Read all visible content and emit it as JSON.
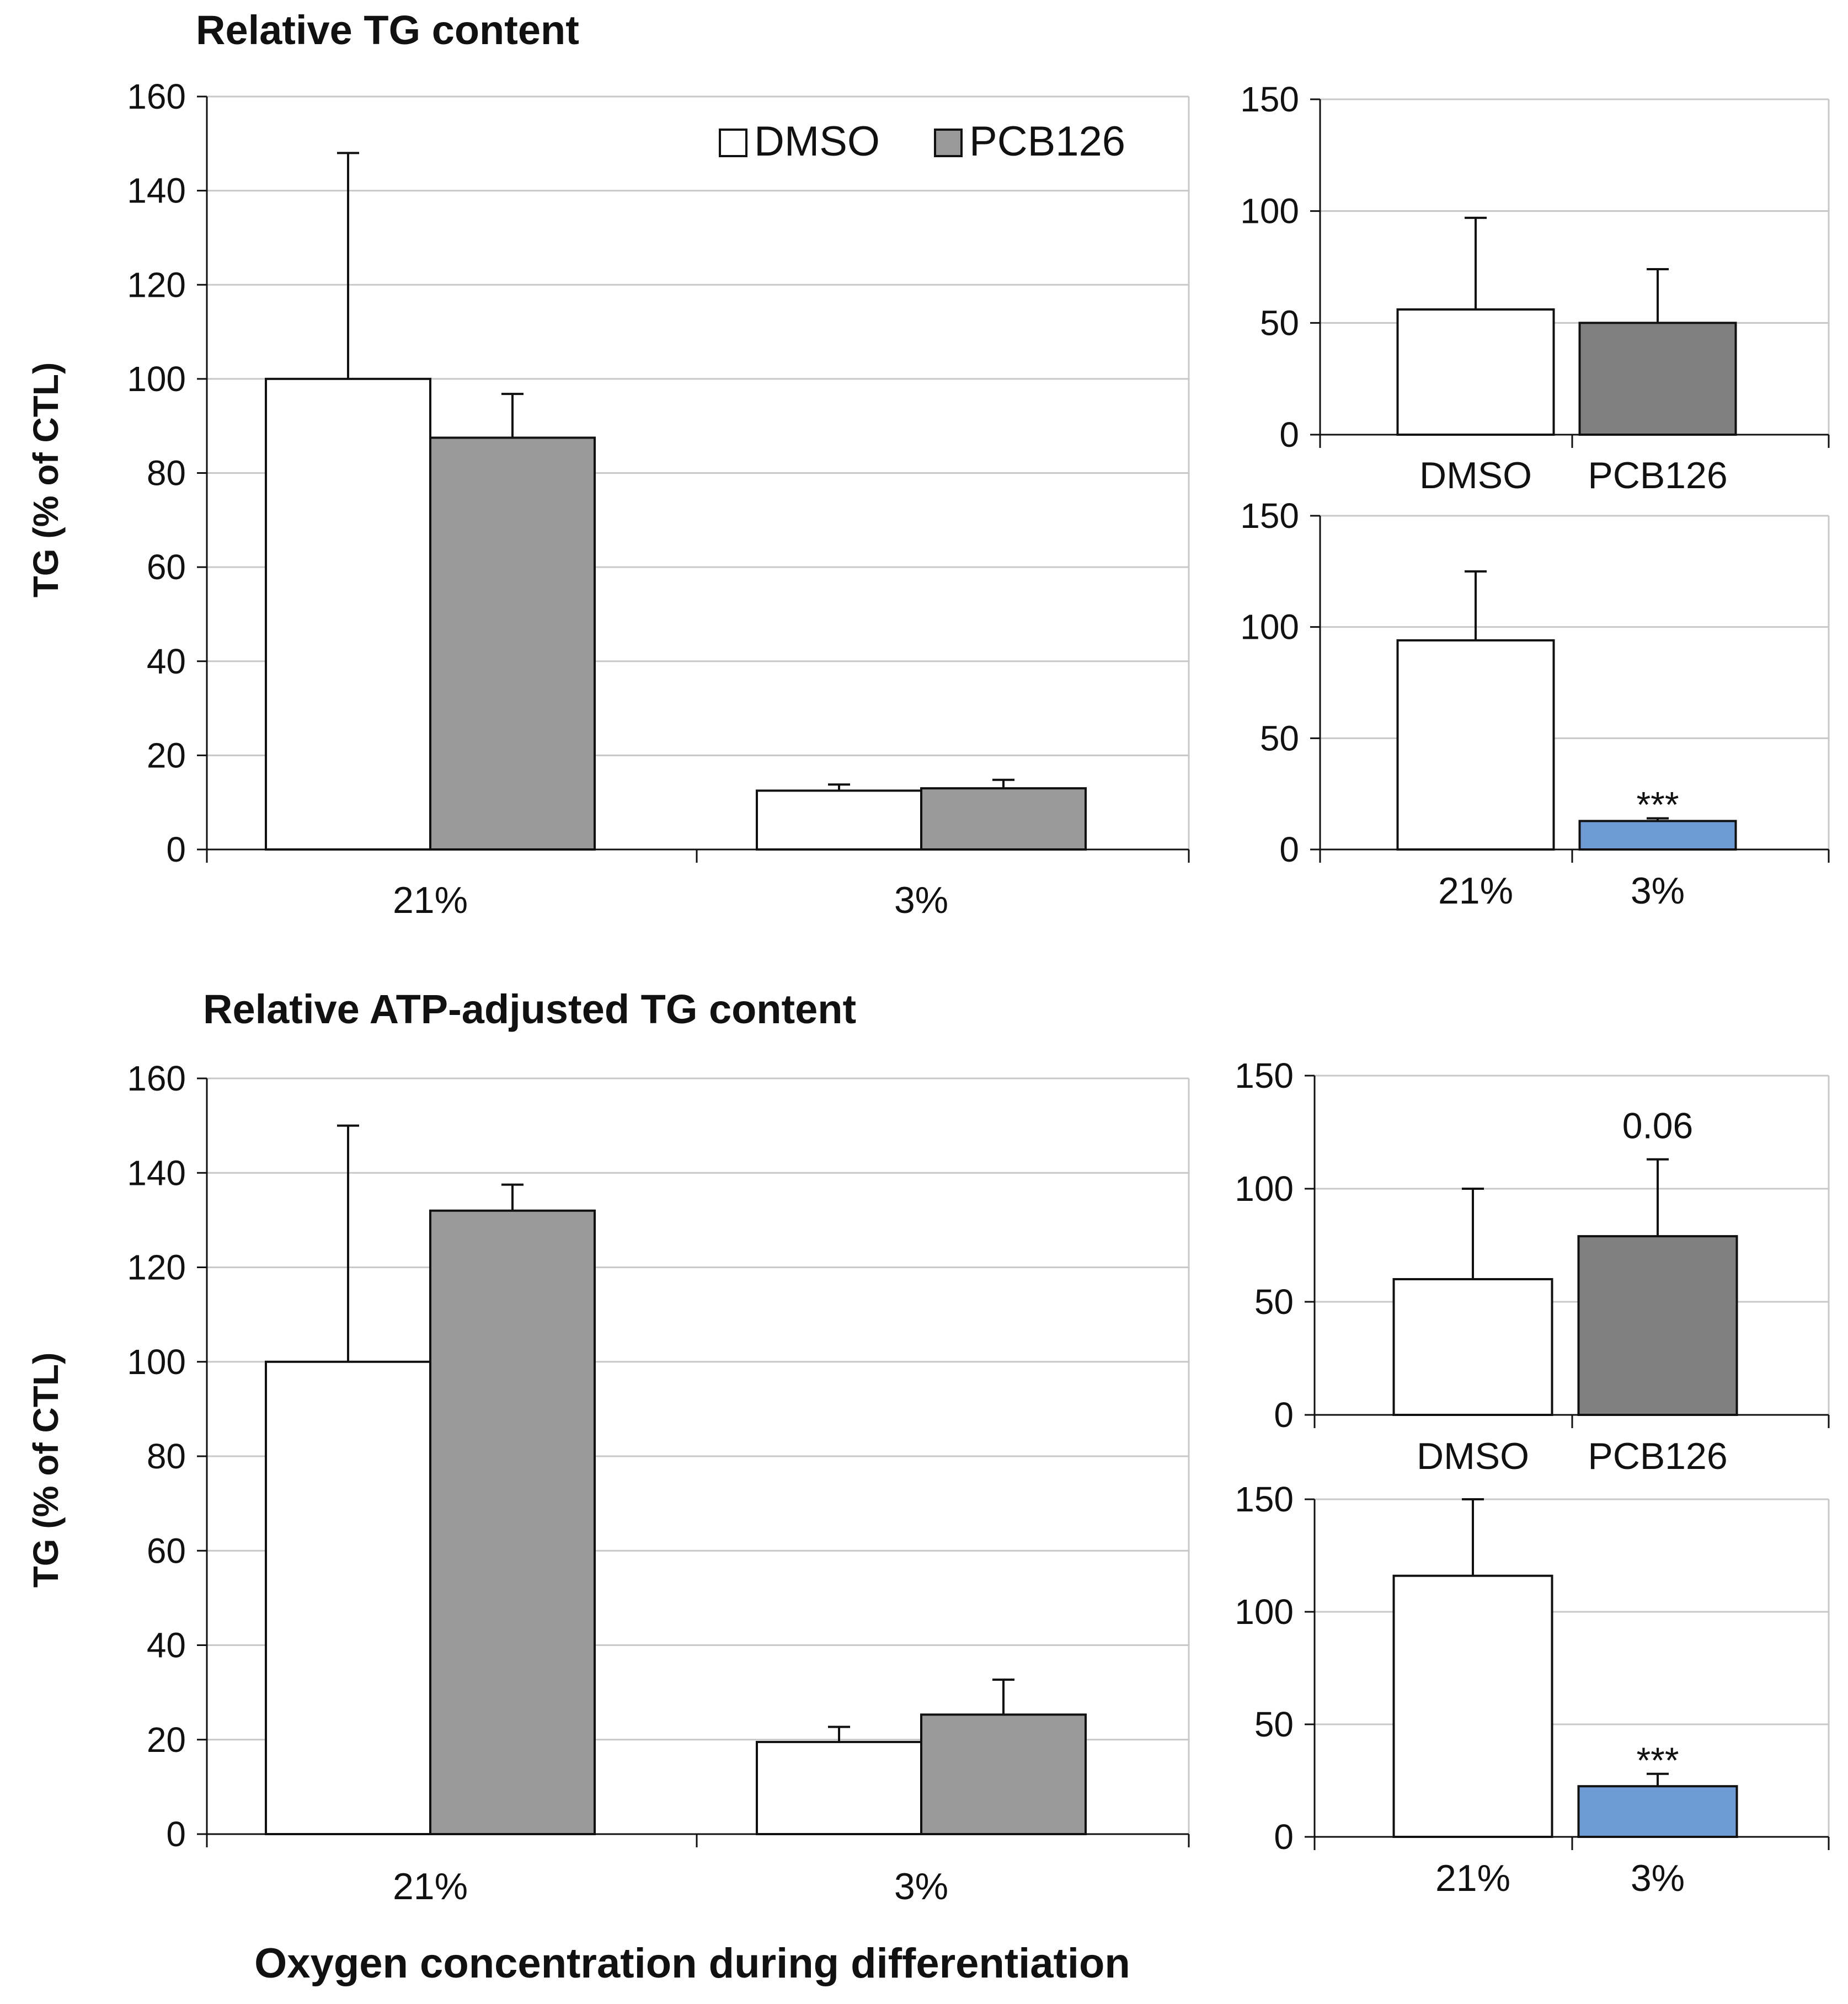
{
  "figure": {
    "top_title": "Relative TG content",
    "bottom_title": "Relative ATP-adjusted TG content",
    "ylabel": "TG (% of CTL)",
    "xlabel": "Oxygen concentration during differentiation"
  },
  "chart_data": [
    {
      "id": "A",
      "type": "bar",
      "title": "Relative TG content",
      "ylabel": "TG (% of CTL)",
      "xlabel": "",
      "ylim": [
        0,
        160
      ],
      "yticks": [
        0,
        20,
        40,
        60,
        80,
        100,
        120,
        140,
        160
      ],
      "grid": true,
      "legend": "top-right",
      "categories": [
        "21%",
        "3%"
      ],
      "series": [
        {
          "name": "DMSO",
          "color": "#ffffff",
          "values": [
            100,
            12.5
          ],
          "errors": [
            48,
            1.3
          ]
        },
        {
          "name": "PCB126",
          "color": "#999999",
          "values": [
            87.5,
            13
          ],
          "errors": [
            9.3,
            1.8
          ]
        }
      ]
    },
    {
      "id": "A-inset-treatment",
      "type": "bar",
      "ylim": [
        0,
        150
      ],
      "yticks": [
        0,
        50,
        100,
        150
      ],
      "grid": true,
      "categories": [
        "DMSO",
        "PCB126"
      ],
      "values": [
        56,
        50
      ],
      "errors": [
        41,
        24
      ],
      "colors": [
        "#ffffff",
        "#808080"
      ],
      "annotations": [
        "",
        ""
      ]
    },
    {
      "id": "A-inset-oxygen",
      "type": "bar",
      "ylim": [
        0,
        150
      ],
      "yticks": [
        0,
        50,
        100,
        150
      ],
      "grid": true,
      "categories": [
        "21%",
        "3%"
      ],
      "values": [
        94,
        12.8
      ],
      "errors": [
        31,
        1.2
      ],
      "colors": [
        "#ffffff",
        "#6e9bd3"
      ],
      "annotations": [
        "",
        "***"
      ]
    },
    {
      "id": "B",
      "type": "bar",
      "title": "Relative ATP-adjusted TG content",
      "ylabel": "TG (% of CTL)",
      "xlabel": "Oxygen concentration during differentiation",
      "ylim": [
        0,
        160
      ],
      "yticks": [
        0,
        20,
        40,
        60,
        80,
        100,
        120,
        140,
        160
      ],
      "grid": true,
      "categories": [
        "21%",
        "3%"
      ],
      "series": [
        {
          "name": "DMSO",
          "color": "#ffffff",
          "values": [
            100,
            19.5
          ],
          "errors": [
            50,
            3.2
          ]
        },
        {
          "name": "PCB126",
          "color": "#999999",
          "values": [
            132,
            25.3
          ],
          "errors": [
            5.5,
            7.4
          ]
        }
      ]
    },
    {
      "id": "B-inset-treatment",
      "type": "bar",
      "ylim": [
        0,
        150
      ],
      "yticks": [
        0,
        50,
        100,
        150
      ],
      "grid": true,
      "categories": [
        "DMSO",
        "PCB126"
      ],
      "values": [
        60,
        79
      ],
      "errors": [
        40,
        34
      ],
      "colors": [
        "#ffffff",
        "#808080"
      ],
      "annotations": [
        "",
        "0.06"
      ]
    },
    {
      "id": "B-inset-oxygen",
      "type": "bar",
      "ylim": [
        0,
        150
      ],
      "yticks": [
        0,
        50,
        100,
        150
      ],
      "grid": true,
      "categories": [
        "21%",
        "3%"
      ],
      "values": [
        116,
        22.5
      ],
      "errors": [
        34,
        5.5
      ],
      "colors": [
        "#ffffff",
        "#6e9bd3"
      ],
      "annotations": [
        "",
        "***"
      ]
    }
  ]
}
